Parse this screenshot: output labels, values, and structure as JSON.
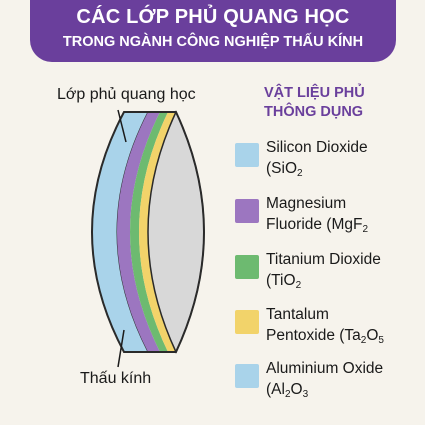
{
  "header": {
    "title": "CÁC LỚP PHỦ QUANG HỌC",
    "subtitle": "TRONG NGÀNH CÔNG NGHIỆP THẤU KÍNH"
  },
  "labels": {
    "coating": "Lớp phủ quang học",
    "lens": "Thấu kính"
  },
  "legend": {
    "title_line1": "VẬT LIỆU PHỦ",
    "title_line2": "THÔNG DỤNG",
    "items": [
      {
        "line1": "Silicon Dioxide",
        "l2a": "(SiO",
        "l2sub1": "2",
        "l2b": "",
        "l2sub2": "",
        "color": "#a9d3ea"
      },
      {
        "line1": "Magnesium",
        "l2a": "Fluoride (MgF",
        "l2sub1": "2",
        "l2b": "",
        "l2sub2": "",
        "color": "#9c76c0"
      },
      {
        "line1": "Titanium Dioxide",
        "l2a": "(TiO",
        "l2sub1": "2",
        "l2b": "",
        "l2sub2": "",
        "color": "#6dba70"
      },
      {
        "line1": "Tantalum",
        "l2a": "Pentoxide (Ta",
        "l2sub1": "2",
        "l2b": "O",
        "l2sub2": "5",
        "color": "#f2d36a"
      },
      {
        "line1": "Aluminium Oxide",
        "l2a": "(Al",
        "l2sub1": "2",
        "l2b": "O",
        "l2sub2": "3",
        "color": "#a9d3ea"
      }
    ]
  },
  "colors": {
    "header": "#6a3f9c",
    "lens_glass": "#d8d8d8",
    "outline": "#2a2a2a"
  }
}
